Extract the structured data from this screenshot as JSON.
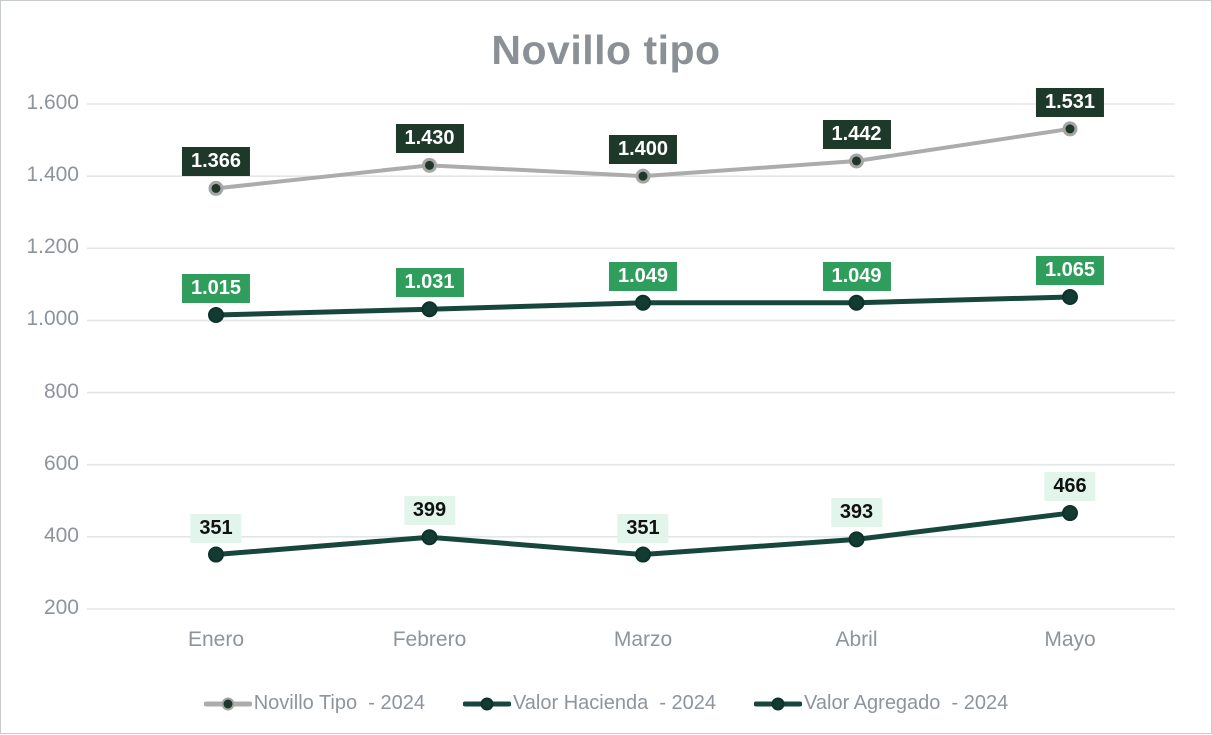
{
  "chart_data": {
    "type": "line",
    "title": "Novillo tipo",
    "categories": [
      "Enero",
      "Febrero",
      "Marzo",
      "Abril",
      "Mayo"
    ],
    "xlabel": "",
    "ylabel": "",
    "ylim": [
      200,
      1600
    ],
    "grid": true,
    "legend_position": "bottom",
    "y_axis": {
      "min": 200,
      "max": 1600,
      "step": 200,
      "tick_labels": [
        "200",
        "400",
        "600",
        "800",
        "1.000",
        "1.200",
        "1.400",
        "1.600"
      ]
    },
    "series": [
      {
        "name": "Novillo Tipo  - 2024",
        "values": [
          1366,
          1430,
          1400,
          1442,
          1531
        ],
        "labels": [
          "1.366",
          "1.430",
          "1.400",
          "1.442",
          "1.531"
        ],
        "line_color": "#acacac",
        "line_width": 4,
        "marker_fill": "#1e3829",
        "marker_stroke": "#a6a6a6",
        "marker_stroke_width": 3,
        "marker_radius": 6,
        "label_bg": "#1e3829",
        "label_text_color": "#ffffff"
      },
      {
        "name": "Valor Hacienda  - 2024",
        "values": [
          1015,
          1031,
          1049,
          1049,
          1065
        ],
        "labels": [
          "1.015",
          "1.031",
          "1.049",
          "1.049",
          "1.065"
        ],
        "line_color": "#17463c",
        "line_width": 5,
        "marker_fill": "#123b32",
        "marker_stroke": "#0e322b",
        "marker_stroke_width": 2,
        "marker_radius": 7,
        "label_bg": "#2f9e5c",
        "label_text_color": "#ffffff"
      },
      {
        "name": "Valor Agregado  - 2024",
        "values": [
          351,
          399,
          351,
          393,
          466
        ],
        "labels": [
          "351",
          "399",
          "351",
          "393",
          "466"
        ],
        "line_color": "#17463c",
        "line_width": 5,
        "marker_fill": "#123b32",
        "marker_stroke": "#0e322b",
        "marker_stroke_width": 2,
        "marker_radius": 7,
        "label_bg": "#e2f5eb",
        "label_text_color": "#111111"
      }
    ],
    "colors": {
      "title": "#8a9095",
      "axis_text": "#8d949b",
      "gridline": "#e3e6e7",
      "background": "#ffffff"
    }
  }
}
